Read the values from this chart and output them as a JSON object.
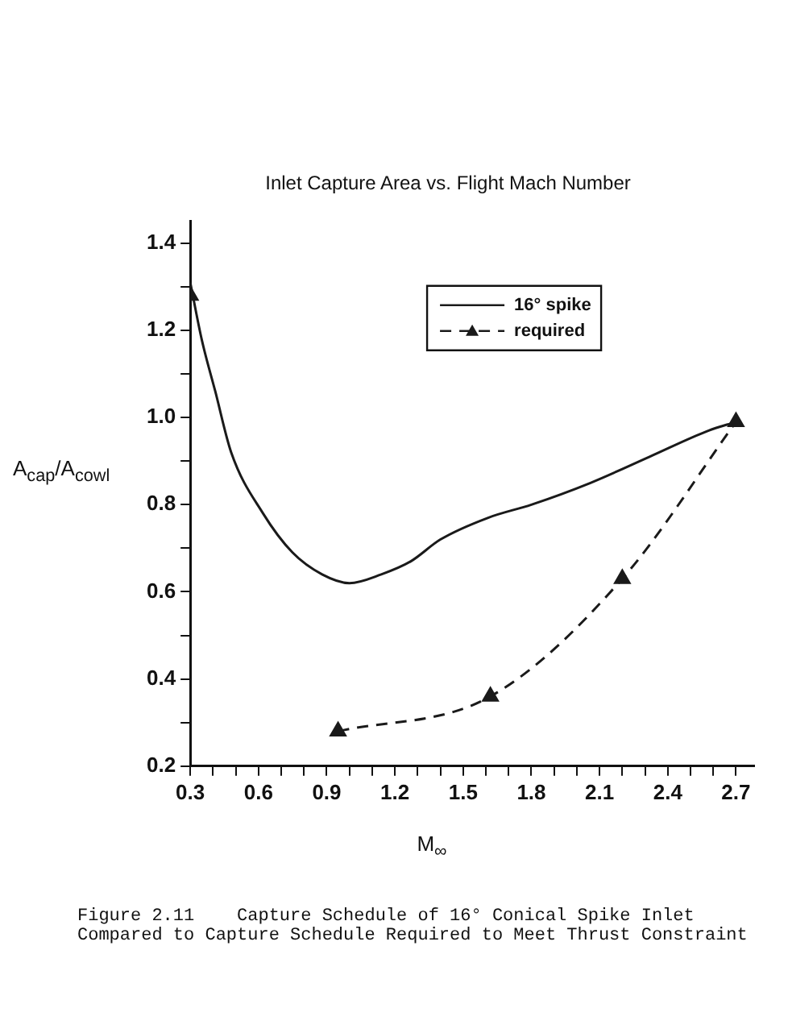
{
  "chart_data": {
    "type": "line",
    "title": "Inlet Capture Area vs. Flight Mach Number",
    "xlabel": "M$_{∞}$",
    "ylabel": "A$_{cap}$/A$_{cowl}$",
    "xlim": [
      0.3,
      2.78
    ],
    "xticks": [
      0.3,
      {
        "value": 0.4,
        "label": null
      },
      {
        "value": 0.5,
        "label": null
      },
      0.6,
      {
        "value": 0.7,
        "label": null
      },
      {
        "value": 0.8,
        "label": null
      },
      0.9,
      {
        "value": 1,
        "label": null
      },
      {
        "value": 1.1,
        "label": null
      },
      1.2,
      {
        "value": 1.3,
        "label": null
      },
      {
        "value": 1.4,
        "label": null
      },
      1.5,
      {
        "value": 1.6,
        "label": null
      },
      {
        "value": 1.7,
        "label": null
      },
      1.8,
      {
        "value": 1.9,
        "label": null
      },
      {
        "value": 2,
        "label": null
      },
      2.1,
      {
        "value": 2.2,
        "label": null
      },
      {
        "value": 2.3,
        "label": null
      },
      2.4,
      {
        "value": 2.5,
        "label": null
      },
      {
        "value": 2.6,
        "label": null
      },
      2.7
    ],
    "ylim": [
      0.2,
      1.45
    ],
    "yticks": [
      0.2,
      {
        "value": 0.3,
        "label": null
      },
      0.4,
      {
        "value": 0.5,
        "label": null
      },
      0.6,
      {
        "value": 0.7,
        "label": null
      },
      0.8,
      {
        "value": 0.9,
        "label": null
      },
      {
        "value": 1,
        "label": "1.0"
      },
      {
        "value": 1.1,
        "label": null
      },
      1.2,
      {
        "value": 1.3,
        "label": null
      },
      1.4
    ],
    "grid": false,
    "legend": "top",
    "series": [
      {
        "name": "16° spike",
        "color": "#1a1a1a",
        "marker": "none",
        "line_style": "solid",
        "x": [
          0.3,
          0.35,
          0.41,
          0.48,
          0.62,
          0.75,
          0.88,
          1.0,
          1.14,
          1.27,
          1.4,
          1.61,
          1.8,
          2.06,
          2.32,
          2.58,
          2.7
        ],
        "values": [
          1.31,
          1.18,
          1.06,
          0.92,
          0.78,
          0.69,
          0.64,
          0.62,
          0.64,
          0.67,
          0.72,
          0.77,
          0.8,
          0.85,
          0.91,
          0.97,
          0.99
        ]
      },
      {
        "name": "required",
        "color": "#1a1a1a",
        "marker": "triangle",
        "line_style": "dashed",
        "x": [
          0.95,
          1.62,
          2.2,
          2.7
        ],
        "values": [
          0.28,
          0.36,
          0.63,
          0.99
        ]
      },
      {
        "color": "#1a1a1a",
        "type": "scatter",
        "marker": "triangle",
        "x": [
          0.3
        ],
        "values": [
          1.28
        ]
      }
    ],
    "annotations": [
      "Figure 2.11    Capture Schedule of 16° Conical Spike Inlet Compared to Capture Schedule Required to Meet Thrust Constraint"
    ]
  }
}
